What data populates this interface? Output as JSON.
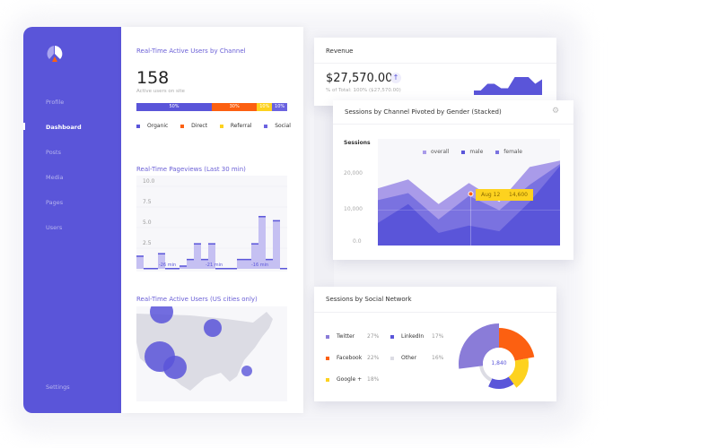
{
  "colors": {
    "primary": "#5a55d9",
    "orange": "#fc6011",
    "yellow": "#fdd21f",
    "light": "#a99be9",
    "mid": "#7a72e0"
  },
  "sidebar": {
    "logo": "pie-logo",
    "items": [
      {
        "label": "Profile"
      },
      {
        "label": "Dashboard",
        "active": true
      },
      {
        "label": "Posts"
      },
      {
        "label": "Media"
      },
      {
        "label": "Pages"
      },
      {
        "label": "Users"
      }
    ],
    "settings": "Settings"
  },
  "active_users": {
    "title": "Real-Time Active Users by Channel",
    "count": "158",
    "subtitle": "Active users on site",
    "segments": [
      {
        "label": "Organic",
        "pct": "50%",
        "value": 50,
        "color": "#5a55d9"
      },
      {
        "label": "Direct",
        "pct": "30%",
        "value": 30,
        "color": "#fc6011"
      },
      {
        "label": "Referral",
        "pct": "10%",
        "value": 10,
        "color": "#fdd21f"
      },
      {
        "label": "Social",
        "pct": "10%",
        "value": 10,
        "color": "#6b63e0"
      }
    ]
  },
  "pageviews": {
    "title": "Real-Time Pageviews (Last 30 min)",
    "yticks": [
      "10.0",
      "7.5",
      "5.0",
      "2.5"
    ],
    "ymax": 10,
    "values": [
      1.5,
      0,
      0,
      1.8,
      0,
      0,
      0.3,
      1.1,
      3.0,
      1.1,
      3.0,
      0,
      0,
      0,
      1.1,
      1.1,
      3.0,
      6.3,
      1.1,
      5.8,
      0
    ],
    "annotations": [
      "-26 min",
      "-21 min",
      "-16 min"
    ]
  },
  "map": {
    "title": "Real-Time Active Users (US cities only)"
  },
  "revenue": {
    "title": "Revenue",
    "amount": "$27,570.00",
    "sub": "% of Total: 100% ($27,570.00)",
    "trend": "arrow-up-icon",
    "spark": [
      2,
      2,
      5,
      5,
      3,
      3,
      8,
      8,
      8,
      5,
      7
    ]
  },
  "sessions": {
    "title": "Sessions by Channel Pivoted by Gender (Stacked)",
    "ylabel": "Sessions",
    "yticks": [
      "20,000",
      "10,000",
      "0.0"
    ],
    "legend": [
      "overall",
      "male",
      "female"
    ],
    "chart_data": {
      "type": "area",
      "title": "Sessions by Channel Pivoted by Gender (Stacked)",
      "ylabel": "Sessions",
      "ylim": [
        0,
        25000
      ],
      "series": [
        {
          "name": "overall",
          "values": [
            16000,
            18500,
            11600,
            17500,
            12200,
            22000,
            23800
          ]
        },
        {
          "name": "female",
          "values": [
            12700,
            14700,
            7300,
            13900,
            9900,
            17000,
            22800
          ]
        },
        {
          "name": "male",
          "values": [
            6300,
            11600,
            3500,
            5600,
            4000,
            12200,
            22300
          ]
        }
      ]
    },
    "tooltip": {
      "date": "Aug 12",
      "value": "14,600"
    }
  },
  "social": {
    "title": "Sessions by Social Network",
    "total": "1,840",
    "items": [
      {
        "label": "Twitter",
        "pct": "27%",
        "value": 27,
        "color": "#8a7cd8"
      },
      {
        "label": "LinkedIn",
        "pct": "17%",
        "value": 17,
        "color": "#5a55d9"
      },
      {
        "label": "Facebook",
        "pct": "22%",
        "value": 22,
        "color": "#fc6011"
      },
      {
        "label": "Other",
        "pct": "16%",
        "value": 16,
        "color": "#dcdce4"
      },
      {
        "label": "Google +",
        "pct": "18%",
        "value": 18,
        "color": "#fdd21f"
      }
    ]
  }
}
